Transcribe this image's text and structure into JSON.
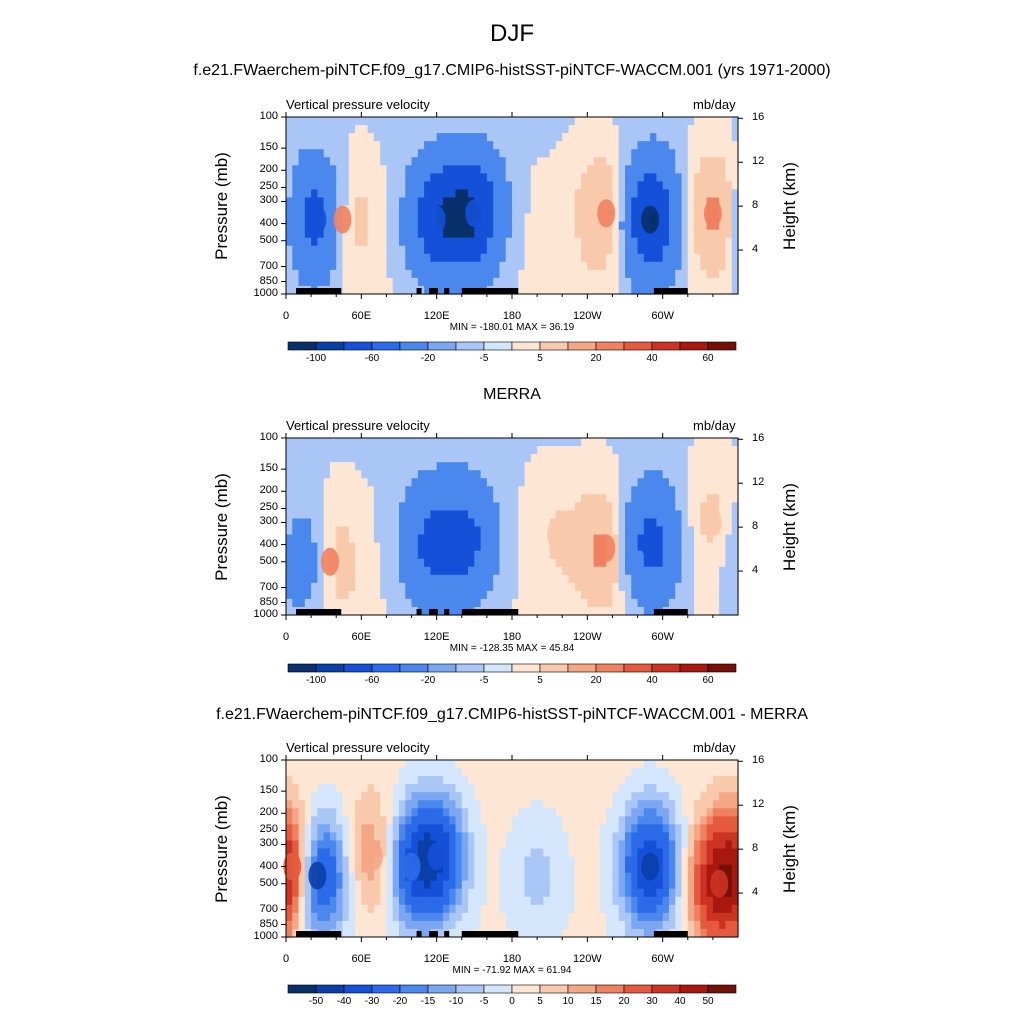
{
  "page": {
    "title": "DJF"
  },
  "panels": [
    {
      "id": "model",
      "title": "f.e21.FWaerchem-piNTCF.f09_g17.CMIP6-histSST-piNTCF-WACCM.001 (yrs 1971-2000)",
      "left_label": "Vertical pressure velocity",
      "right_label": "mb/day",
      "y_axis_label": "Pressure (mb)",
      "right_axis_label": "Height (km)",
      "min_max": "MIN = -180.01  MAX =  36.19",
      "colorbar_labels": [
        "-100",
        "-60",
        "-20",
        "-5",
        "5",
        "20",
        "40",
        "60"
      ]
    },
    {
      "id": "obs",
      "title": "MERRA",
      "left_label": "Vertical pressure velocity",
      "right_label": "mb/day",
      "y_axis_label": "Pressure (mb)",
      "right_axis_label": "Height (km)",
      "min_max": "MIN = -128.35  MAX =  45.84",
      "colorbar_labels": [
        "-100",
        "-60",
        "-20",
        "-5",
        "5",
        "20",
        "40",
        "60"
      ]
    },
    {
      "id": "diff",
      "title": "f.e21.FWaerchem-piNTCF.f09_g17.CMIP6-histSST-piNTCF-WACCM.001 - MERRA",
      "left_label": "Vertical pressure velocity",
      "right_label": "mb/day",
      "y_axis_label": "Pressure (mb)",
      "right_axis_label": "Height (km)",
      "min_max": "MIN = -71.92  MAX =  61.94",
      "colorbar_labels": [
        "-50",
        "-40",
        "-30",
        "-20",
        "-15",
        "-10",
        "-5",
        "0",
        "5",
        "10",
        "15",
        "20",
        "30",
        "40",
        "50"
      ]
    }
  ],
  "axes": {
    "pressure_ticks": [
      "100",
      "150",
      "200",
      "250",
      "300",
      "400",
      "500",
      "700",
      "850",
      "1000"
    ],
    "height_ticks": [
      "16",
      "12",
      "8",
      "4"
    ],
    "lon_ticks": [
      "0",
      "60E",
      "120E",
      "180",
      "120W",
      "60W"
    ]
  },
  "colors": {
    "seq_model_obs": [
      "#08306b",
      "#0a3fa8",
      "#1550d8",
      "#2b6ae8",
      "#4b88ee",
      "#7aa6f2",
      "#a9c6f7",
      "#d4e6fb",
      "#fde6d4",
      "#f9c9ac",
      "#f5a785",
      "#ef8160",
      "#e55a3e",
      "#cc3322",
      "#a8180f",
      "#741008"
    ],
    "seq_diff": [
      "#08306b",
      "#0a3fa8",
      "#1550d8",
      "#2b6ae8",
      "#4b88ee",
      "#7aa6f2",
      "#a9c6f7",
      "#d4e6fb",
      "#fde6d4",
      "#f9c9ac",
      "#f5a785",
      "#ef8160",
      "#e55a3e",
      "#cc3322",
      "#a8180f",
      "#741008"
    ]
  },
  "chart_data": [
    {
      "type": "heatmap",
      "title": "f.e21.FWaerchem-piNTCF.f09_g17.CMIP6-histSST-piNTCF-WACCM.001 (yrs 1971-2000)",
      "xlabel": "",
      "ylabel": "Pressure (mb)",
      "xlim": [
        0,
        360
      ],
      "ylim": [
        1000,
        100
      ],
      "x_ticks": [
        "0",
        "60E",
        "120E",
        "180",
        "120W",
        "60W"
      ],
      "y_ticks": [
        "100",
        "150",
        "200",
        "250",
        "300",
        "400",
        "500",
        "700",
        "850",
        "1000"
      ],
      "levels": [
        -100,
        -60,
        -20,
        -5,
        5,
        20,
        40,
        60
      ],
      "min": -180.01,
      "max": 36.19,
      "features": [
        {
          "lon": 25,
          "p": 380,
          "value": -80
        },
        {
          "lon": 45,
          "p": 380,
          "value": 30
        },
        {
          "lon": 120,
          "p": 380,
          "value": -80
        },
        {
          "lon": 150,
          "p": 350,
          "value": -90
        },
        {
          "lon": 200,
          "p": 450,
          "value": 3
        },
        {
          "lon": 255,
          "p": 350,
          "value": 30
        },
        {
          "lon": 290,
          "p": 380,
          "value": -100
        },
        {
          "lon": 340,
          "p": 350,
          "value": 30
        }
      ]
    },
    {
      "type": "heatmap",
      "title": "MERRA",
      "xlabel": "",
      "ylabel": "Pressure (mb)",
      "xlim": [
        0,
        360
      ],
      "ylim": [
        1000,
        100
      ],
      "x_ticks": [
        "0",
        "60E",
        "120E",
        "180",
        "120W",
        "60W"
      ],
      "y_ticks": [
        "100",
        "150",
        "200",
        "250",
        "300",
        "400",
        "500",
        "700",
        "850",
        "1000"
      ],
      "levels": [
        -100,
        -60,
        -20,
        -5,
        5,
        20,
        40,
        60
      ],
      "min": -128.35,
      "max": 45.84,
      "features": [
        {
          "lon": 15,
          "p": 500,
          "value": -40
        },
        {
          "lon": 35,
          "p": 500,
          "value": 25
        },
        {
          "lon": 115,
          "p": 400,
          "value": -60
        },
        {
          "lon": 145,
          "p": 380,
          "value": -60
        },
        {
          "lon": 215,
          "p": 350,
          "value": 10
        },
        {
          "lon": 255,
          "p": 420,
          "value": 30
        },
        {
          "lon": 290,
          "p": 400,
          "value": -70
        },
        {
          "lon": 340,
          "p": 300,
          "value": 15
        }
      ]
    },
    {
      "type": "heatmap",
      "title": "f.e21.FWaerchem-piNTCF.f09_g17.CMIP6-histSST-piNTCF-WACCM.001 - MERRA",
      "xlabel": "",
      "ylabel": "Pressure (mb)",
      "xlim": [
        0,
        360
      ],
      "ylim": [
        1000,
        100
      ],
      "x_ticks": [
        "0",
        "60E",
        "120E",
        "180",
        "120W",
        "60W"
      ],
      "y_ticks": [
        "100",
        "150",
        "200",
        "250",
        "300",
        "400",
        "500",
        "700",
        "850",
        "1000"
      ],
      "levels": [
        -50,
        -40,
        -30,
        -20,
        -15,
        -10,
        -5,
        0,
        5,
        10,
        15,
        20,
        30,
        40,
        50
      ],
      "min": -71.92,
      "max": 61.94,
      "features": [
        {
          "lon": 5,
          "p": 400,
          "value": 30
        },
        {
          "lon": 25,
          "p": 450,
          "value": -40
        },
        {
          "lon": 70,
          "p": 350,
          "value": 15
        },
        {
          "lon": 100,
          "p": 400,
          "value": -25
        },
        {
          "lon": 120,
          "p": 350,
          "value": -35
        },
        {
          "lon": 200,
          "p": 450,
          "value": -8
        },
        {
          "lon": 290,
          "p": 400,
          "value": -40
        },
        {
          "lon": 345,
          "p": 500,
          "value": 40
        }
      ]
    }
  ]
}
